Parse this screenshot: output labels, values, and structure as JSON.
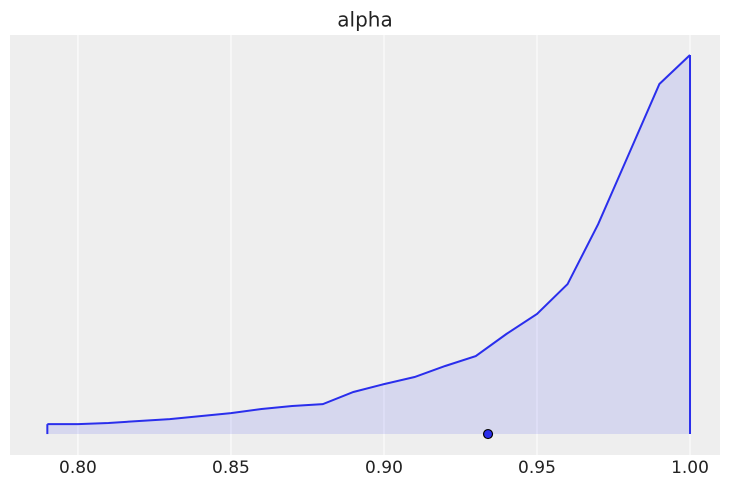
{
  "chart_data": {
    "type": "density",
    "title": "alpha",
    "x": [
      0.79,
      0.8,
      0.81,
      0.82,
      0.83,
      0.84,
      0.85,
      0.86,
      0.87,
      0.88,
      0.89,
      0.9,
      0.91,
      0.92,
      0.93,
      0.94,
      0.95,
      0.96,
      0.97,
      0.98,
      0.99,
      1.0
    ],
    "series": [
      {
        "name": "alpha",
        "color": "#2a2eec",
        "values": [
          0.53,
          0.53,
          0.59,
          0.7,
          0.8,
          0.96,
          1.12,
          1.34,
          1.5,
          1.6,
          2.25,
          2.67,
          3.05,
          3.64,
          4.17,
          5.35,
          6.42,
          8.02,
          11.23,
          14.97,
          18.72,
          20.27
        ]
      }
    ],
    "point": {
      "x": 0.934,
      "y": 0
    },
    "xlim": [
      0.7778,
      1.0098
    ],
    "ylim": [
      -1.12,
      21.34
    ],
    "xticks": [
      {
        "value": 0.8,
        "label": "0.80"
      },
      0.85,
      {
        "value": 0.9,
        "label": "0.90"
      },
      0.95,
      {
        "value": 1.0,
        "label": "1.00"
      }
    ],
    "grid": true
  }
}
